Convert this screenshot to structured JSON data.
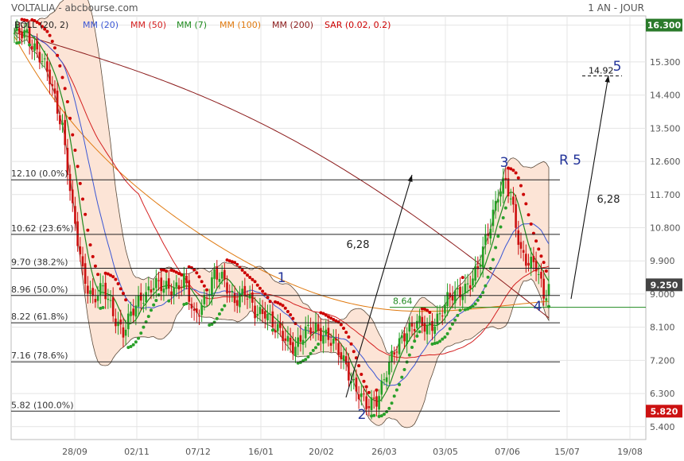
{
  "header": {
    "title": "VOLTALIA - abcbourse.com",
    "period": "1 AN - JOUR"
  },
  "legend": [
    {
      "label": "BOLL (20, 2)",
      "color": "#222222"
    },
    {
      "label": "MM (20)",
      "color": "#3a56d4"
    },
    {
      "label": "MM (50)",
      "color": "#d42020"
    },
    {
      "label": "MM (7)",
      "color": "#1f8a1f"
    },
    {
      "label": "MM (100)",
      "color": "#e07a10"
    },
    {
      "label": "MM (200)",
      "color": "#8b1a1a"
    },
    {
      "label": "SAR (0.02, 0.2)",
      "color": "#cc0000"
    }
  ],
  "colors": {
    "bull": "#22a022",
    "bear": "#cc1010",
    "band_fill": "#fce4d6",
    "sar_bull": "#2aa02a",
    "sar_bear": "#cc0000"
  },
  "chart_data": {
    "type": "candlestick",
    "ylim": [
      5.05,
      16.55
    ],
    "y_ticks": [
      16.3,
      15.3,
      14.4,
      13.5,
      12.6,
      11.7,
      10.8,
      9.9,
      9.0,
      8.1,
      7.2,
      6.3,
      5.4
    ],
    "y_tick_labels": [
      "16.300",
      "15.300",
      "14.400",
      "13.500",
      "12.600",
      "11.700",
      "10.800",
      "9.900",
      "9.000",
      "8.100",
      "7.200",
      "6.300",
      "5.400"
    ],
    "x_ticks": [
      "28/09",
      "02/11",
      "07/12",
      "16/01",
      "20/02",
      "26/03",
      "03/05",
      "07/06",
      "15/07",
      "19/08"
    ],
    "high_badge": {
      "value": "16.300",
      "color": "#2a7a2a"
    },
    "low_badge": {
      "value": "5.820",
      "color": "#cc1111"
    },
    "last_badge": {
      "value": "9.250",
      "color": "#444444"
    },
    "fibonacci": [
      {
        "label": "12.10  (0.0%)",
        "value": 12.1
      },
      {
        "label": "10.62  (23.6%)",
        "value": 10.62
      },
      {
        "label": "9.70  (38.2%)",
        "value": 9.7
      },
      {
        "label": "8.96  (50.0%)",
        "value": 8.96
      },
      {
        "label": "8.22  (61.8%)",
        "value": 8.22
      },
      {
        "label": "7.16  (78.6%)",
        "value": 7.16
      },
      {
        "label": "5.82  (100.0%)",
        "value": 5.82
      }
    ],
    "support_line": {
      "label": "8.64",
      "value": 8.64
    },
    "target_line": {
      "label": "14.92",
      "value": 14.92
    },
    "wave_labels": [
      "1",
      "2",
      "3",
      "4",
      "5",
      "R 5"
    ],
    "measure_labels": [
      "6,28",
      "6,28"
    ],
    "close_anchors": [
      [
        0,
        16.0
      ],
      [
        5,
        16.1
      ],
      [
        9,
        15.6
      ],
      [
        14,
        14.8
      ],
      [
        19,
        13.6
      ],
      [
        23,
        11.2
      ],
      [
        27,
        9.6
      ],
      [
        31,
        8.9
      ],
      [
        35,
        9.1
      ],
      [
        39,
        8.5
      ],
      [
        43,
        8.0
      ],
      [
        47,
        8.5
      ],
      [
        51,
        9.0
      ],
      [
        55,
        9.3
      ],
      [
        59,
        9.1
      ],
      [
        63,
        9.2
      ],
      [
        67,
        9.4
      ],
      [
        71,
        8.3
      ],
      [
        75,
        8.9
      ],
      [
        79,
        9.5
      ],
      [
        83,
        9.3
      ],
      [
        87,
        8.9
      ],
      [
        91,
        9.0
      ],
      [
        95,
        8.5
      ],
      [
        99,
        8.6
      ],
      [
        103,
        8.0
      ],
      [
        107,
        7.8
      ],
      [
        111,
        7.6
      ],
      [
        115,
        7.9
      ],
      [
        119,
        8.1
      ],
      [
        123,
        7.9
      ],
      [
        127,
        7.5
      ],
      [
        131,
        7.1
      ],
      [
        135,
        6.4
      ],
      [
        139,
        5.9
      ],
      [
        143,
        6.2
      ],
      [
        147,
        6.9
      ],
      [
        151,
        7.5
      ],
      [
        155,
        8.1
      ],
      [
        159,
        8.2
      ],
      [
        163,
        8.0
      ],
      [
        167,
        8.4
      ],
      [
        171,
        8.8
      ],
      [
        175,
        9.0
      ],
      [
        179,
        9.3
      ],
      [
        183,
        9.6
      ],
      [
        187,
        10.7
      ],
      [
        191,
        11.8
      ],
      [
        194,
        12.0
      ],
      [
        197,
        11.2
      ],
      [
        200,
        10.2
      ],
      [
        203,
        9.9
      ],
      [
        206,
        9.7
      ],
      [
        209,
        8.9
      ],
      [
        211,
        9.25
      ]
    ]
  }
}
